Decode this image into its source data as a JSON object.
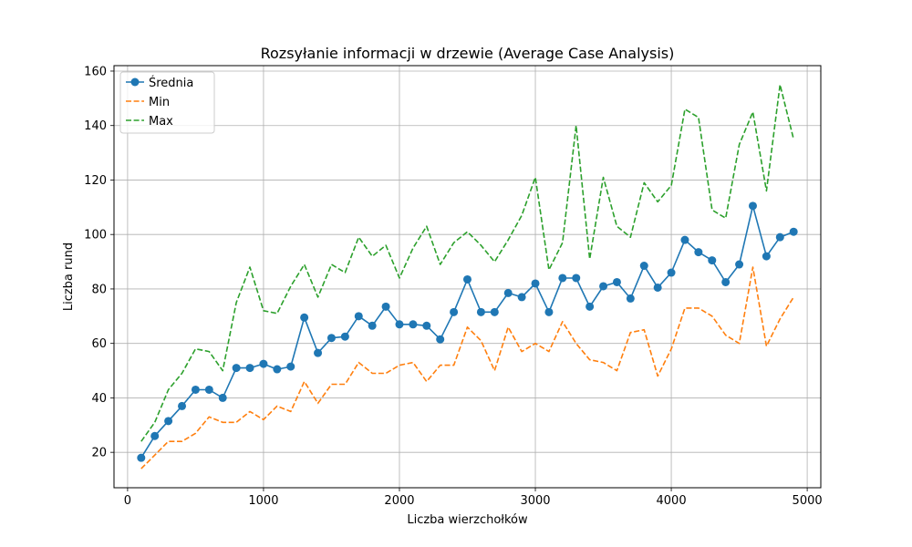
{
  "chart_data": {
    "type": "line",
    "title": "Rozsyłanie informacji w drzewie (Average Case Analysis)",
    "xlabel": "Liczba wierzchołków",
    "ylabel": "Liczba rund",
    "xlim": [
      -100,
      5100
    ],
    "ylim": [
      7,
      162
    ],
    "xticks": [
      0,
      1000,
      2000,
      3000,
      4000,
      5000
    ],
    "yticks": [
      20,
      40,
      60,
      80,
      100,
      120,
      140,
      160
    ],
    "grid": true,
    "legend_position": "top-left",
    "x": [
      100,
      200,
      300,
      400,
      500,
      600,
      700,
      800,
      900,
      1000,
      1100,
      1200,
      1300,
      1400,
      1500,
      1600,
      1700,
      1800,
      1900,
      2000,
      2100,
      2200,
      2300,
      2400,
      2500,
      2600,
      2700,
      2800,
      2900,
      3000,
      3100,
      3200,
      3300,
      3400,
      3500,
      3600,
      3700,
      3800,
      3900,
      4000,
      4100,
      4200,
      4300,
      4400,
      4500,
      4600,
      4700,
      4800,
      4900
    ],
    "series": [
      {
        "name": "Średnia",
        "color": "#1f77b4",
        "style": "solid",
        "marker": "circle",
        "values": [
          18,
          26,
          31.5,
          37,
          43,
          43,
          40,
          51,
          51,
          52.5,
          50.5,
          51.5,
          69.5,
          56.5,
          62,
          62.5,
          70,
          66.5,
          73.5,
          67,
          67,
          66.5,
          61.5,
          71.5,
          83.5,
          71.5,
          71.5,
          78.5,
          77,
          82,
          71.5,
          84,
          84,
          73.5,
          81,
          82.5,
          76.5,
          88.5,
          80.5,
          86,
          98,
          93.5,
          90.5,
          82.5,
          89,
          110.5,
          92,
          99,
          101
        ]
      },
      {
        "name": "Min",
        "color": "#ff7f0e",
        "style": "dashed",
        "marker": "none",
        "values": [
          14,
          19,
          24,
          24,
          27,
          33,
          31,
          31,
          35,
          32,
          37,
          35,
          46,
          38,
          45,
          45,
          53,
          49,
          49,
          52,
          53,
          46,
          52,
          52,
          66,
          61,
          50,
          66,
          57,
          60,
          57,
          68,
          60,
          54,
          53,
          50,
          64,
          65,
          48,
          58,
          73,
          73,
          70,
          63,
          60,
          88,
          59,
          69,
          77
        ]
      },
      {
        "name": "Max",
        "color": "#2ca02c",
        "style": "dashed",
        "marker": "none",
        "values": [
          24,
          31,
          43,
          49,
          58,
          57,
          50,
          75,
          88,
          72,
          71,
          81,
          89,
          77,
          89,
          86,
          99,
          92,
          96,
          84,
          95,
          103,
          89,
          97,
          101,
          96,
          90,
          98,
          107,
          121,
          87,
          97,
          140,
          91,
          121,
          103,
          99,
          119,
          112,
          118,
          146,
          143,
          109,
          106,
          133,
          145,
          116,
          155,
          135
        ]
      }
    ]
  }
}
